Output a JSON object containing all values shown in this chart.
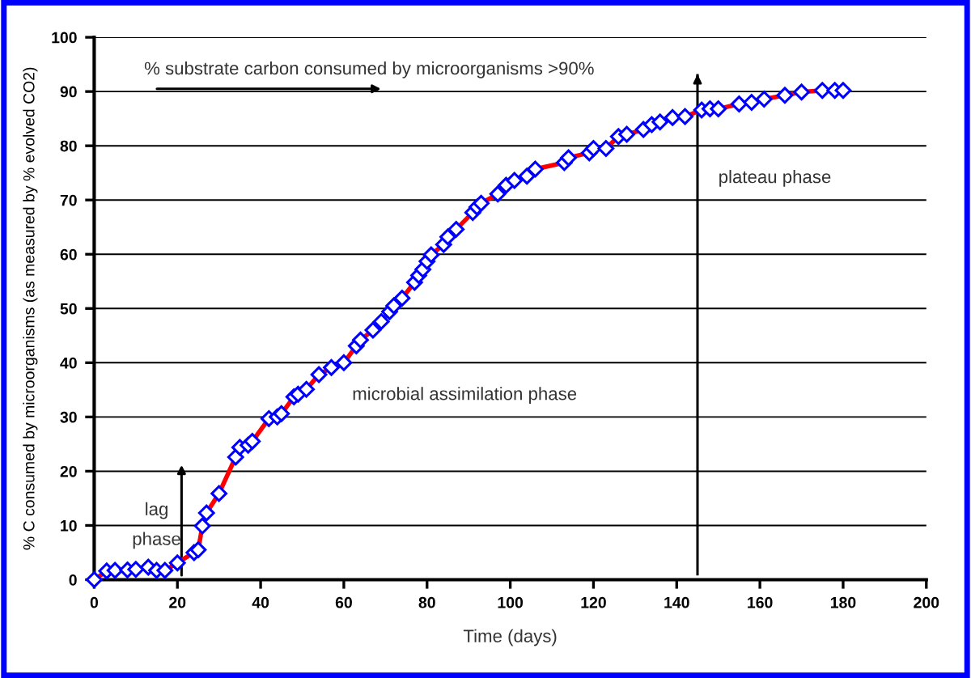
{
  "chart_data": {
    "type": "line",
    "xlabel": "Time (days)",
    "ylabel": "% C consumed by microorganisms (as measured by % evolved CO2)",
    "x": [
      0,
      3,
      5,
      8,
      10,
      13,
      15,
      17,
      20,
      24,
      25,
      26,
      27,
      30,
      34,
      35,
      37,
      38,
      42,
      44,
      45,
      48,
      49,
      51,
      54,
      57,
      60,
      63,
      64,
      67,
      69,
      71,
      72,
      74,
      77,
      78,
      79,
      80,
      81,
      84,
      85,
      87,
      91,
      92,
      93,
      97,
      99,
      101,
      104,
      106,
      113,
      114,
      119,
      120,
      123,
      126,
      128,
      132,
      134,
      136,
      139,
      142,
      146,
      148,
      150,
      155,
      158,
      161,
      166,
      170,
      175,
      178,
      180
    ],
    "series": [
      {
        "color": "#ff0000",
        "values": [
          0,
          1.6,
          1.7,
          1.8,
          1.9,
          2.3,
          1.7,
          1.7,
          3.1,
          5.0,
          5.5,
          9.9,
          12.3,
          15.9,
          22.6,
          24.4,
          24.8,
          25.5,
          29.7,
          30.0,
          30.6,
          33.7,
          34.2,
          35.1,
          37.8,
          39.1,
          40.0,
          43.1,
          44.2,
          46.0,
          47.6,
          49.4,
          50.5,
          51.9,
          54.8,
          56.1,
          57.2,
          58.7,
          59.9,
          61.8,
          63.2,
          64.6,
          67.7,
          68.7,
          69.4,
          71.1,
          72.7,
          73.6,
          74.4,
          75.7,
          76.9,
          77.8,
          78.7,
          79.5,
          79.5,
          81.7,
          82.1,
          83.0,
          83.9,
          84.4,
          85.2,
          85.4,
          86.6,
          86.8,
          86.8,
          87.7,
          88.0,
          88.6,
          89.3,
          89.9,
          90.2,
          90.2,
          90.2
        ]
      }
    ],
    "xlim": [
      0,
      200
    ],
    "xticks": [
      0,
      20,
      40,
      60,
      80,
      100,
      120,
      140,
      160,
      180,
      200
    ],
    "ylim": [
      0,
      100
    ],
    "yticks": [
      0,
      10,
      20,
      30,
      40,
      50,
      60,
      70,
      80,
      90,
      100
    ],
    "ref_lines": [
      {
        "axis": "x",
        "value": 145,
        "color": "#000000"
      }
    ],
    "grid": "y",
    "marker": "diamond",
    "line_style": "solid",
    "annotations": [
      "% substrate carbon consumed by microorganisms >90%",
      "lag\nphase",
      "microbial assimilation phase",
      "plateau phase"
    ]
  }
}
